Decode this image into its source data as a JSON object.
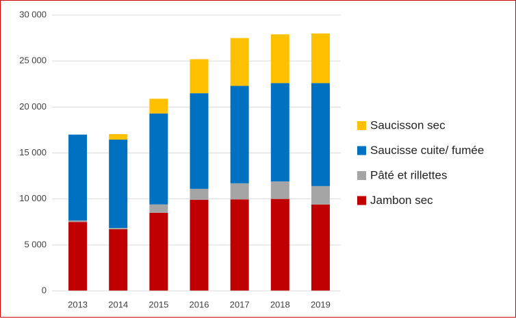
{
  "chart_data": {
    "type": "bar",
    "stacked": true,
    "categories": [
      "2013",
      "2014",
      "2015",
      "2016",
      "2017",
      "2018",
      "2019"
    ],
    "series": [
      {
        "name": "Jambon sec",
        "color": "#c00000",
        "values": [
          7500,
          6700,
          8500,
          9900,
          9950,
          10000,
          9400
        ]
      },
      {
        "name": "Pâté et rillettes",
        "color": "#a5a5a5",
        "values": [
          150,
          150,
          900,
          1200,
          1750,
          1900,
          2000
        ]
      },
      {
        "name": "Saucisse cuite/ fumée",
        "color": "#0070c0",
        "values": [
          9350,
          9600,
          9900,
          10400,
          10600,
          10700,
          11200
        ]
      },
      {
        "name": "Saucisson sec",
        "color": "#ffc000",
        "values": [
          0,
          600,
          1600,
          3700,
          5200,
          5300,
          5400
        ]
      }
    ],
    "ylim": [
      0,
      30000
    ],
    "yticks": [
      0,
      {
        "value": 5000,
        "label": "5 000"
      },
      {
        "value": 10000,
        "label": "10 000"
      },
      {
        "value": 15000,
        "label": "15 000"
      },
      {
        "value": 20000,
        "label": "20 000"
      },
      {
        "value": 25000,
        "label": "25 000"
      },
      {
        "value": 30000,
        "label": "30 000"
      }
    ],
    "grid": true,
    "legend": "right"
  }
}
